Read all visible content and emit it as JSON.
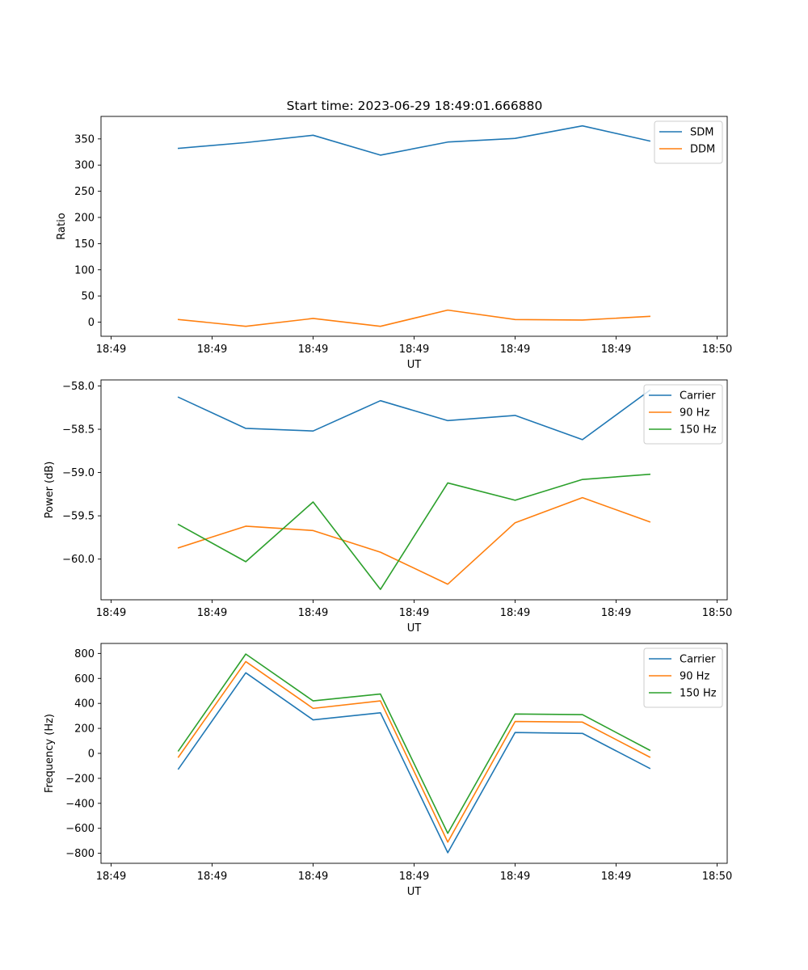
{
  "title": "Start time: 2023-06-29 18:49:01.666880",
  "colors": {
    "blue": "#1f77b4",
    "orange": "#ff7f0e",
    "green": "#2ca02c"
  },
  "x_tick_labels": [
    "18:49",
    "18:49",
    "18:49",
    "18:49",
    "18:49",
    "18:49",
    "18:49"
  ],
  "x_tick_label_last": "18:50",
  "chart_data": [
    {
      "type": "line",
      "xlabel": "UT",
      "ylabel": "Ratio",
      "x": [
        1,
        2,
        3,
        4,
        5,
        6,
        7,
        8
      ],
      "ylim": [
        -27,
        393
      ],
      "yticks": [
        0,
        50,
        100,
        150,
        200,
        250,
        300,
        350
      ],
      "legend": "top-right",
      "series": [
        {
          "name": "SDM",
          "color": "#1f77b4",
          "values": [
            332,
            343,
            357,
            319,
            344,
            351,
            375,
            346
          ]
        },
        {
          "name": "DDM",
          "color": "#ff7f0e",
          "values": [
            5,
            -8,
            7,
            -8,
            23,
            5,
            4,
            11
          ]
        }
      ]
    },
    {
      "type": "line",
      "xlabel": "UT",
      "ylabel": "Power (dB)",
      "x": [
        1,
        2,
        3,
        4,
        5,
        6,
        7,
        8
      ],
      "ylim": [
        -60.47,
        -57.93
      ],
      "yticks": [
        -60.0,
        -59.5,
        -59.0,
        -58.5,
        -58.0
      ],
      "ytick_labels": [
        "−60.0",
        "−59.5",
        "−59.0",
        "−58.5",
        "−58.0"
      ],
      "legend": "top-right",
      "series": [
        {
          "name": "Carrier",
          "color": "#1f77b4",
          "values": [
            -58.13,
            -58.49,
            -58.52,
            -58.17,
            -58.4,
            -58.34,
            -58.62,
            -58.05
          ]
        },
        {
          "name": "90 Hz",
          "color": "#ff7f0e",
          "values": [
            -59.87,
            -59.62,
            -59.67,
            -59.92,
            -60.29,
            -59.58,
            -59.29,
            -59.57
          ]
        },
        {
          "name": "150 Hz",
          "color": "#2ca02c",
          "values": [
            -59.6,
            -60.03,
            -59.34,
            -60.35,
            -59.12,
            -59.32,
            -59.08,
            -59.02
          ]
        }
      ]
    },
    {
      "type": "line",
      "xlabel": "UT",
      "ylabel": "Frequency (Hz)",
      "x": [
        1,
        2,
        3,
        4,
        5,
        6,
        7,
        8
      ],
      "ylim": [
        -880,
        880
      ],
      "yticks": [
        -800,
        -600,
        -400,
        -200,
        0,
        200,
        400,
        600,
        800
      ],
      "ytick_labels": [
        "−800",
        "−600",
        "−400",
        "−200",
        "0",
        "200",
        "400",
        "600",
        "800"
      ],
      "legend": "top-right",
      "series": [
        {
          "name": "Carrier",
          "color": "#1f77b4",
          "values": [
            -125,
            645,
            268,
            325,
            -795,
            167,
            160,
            -120
          ]
        },
        {
          "name": "90 Hz",
          "color": "#ff7f0e",
          "values": [
            -30,
            735,
            360,
            420,
            -710,
            255,
            250,
            -30
          ]
        },
        {
          "name": "150 Hz",
          "color": "#2ca02c",
          "values": [
            20,
            795,
            420,
            475,
            -640,
            315,
            310,
            25
          ]
        }
      ]
    }
  ]
}
